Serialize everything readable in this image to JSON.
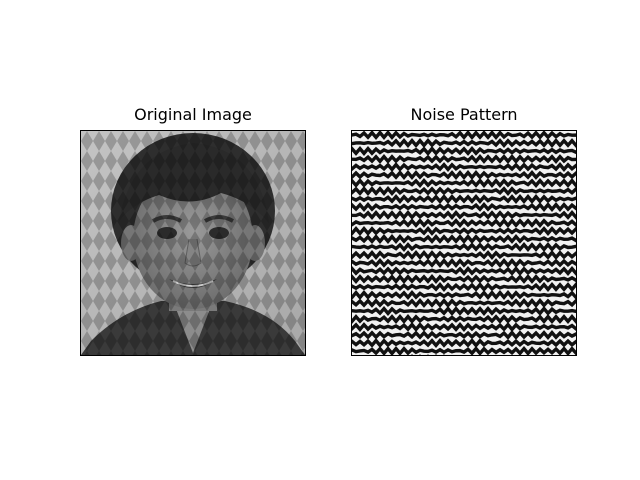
{
  "figure": {
    "panels": [
      {
        "title": "Original Image",
        "content": "grayscale portrait photo with diamond screen pattern"
      },
      {
        "title": "Noise Pattern",
        "content": "high-contrast black and white wavy noise pattern"
      }
    ]
  },
  "colors": {
    "background": "#ffffff",
    "frame": "#000000",
    "noise_dark": "#111111",
    "noise_light": "#f2f2f2"
  }
}
